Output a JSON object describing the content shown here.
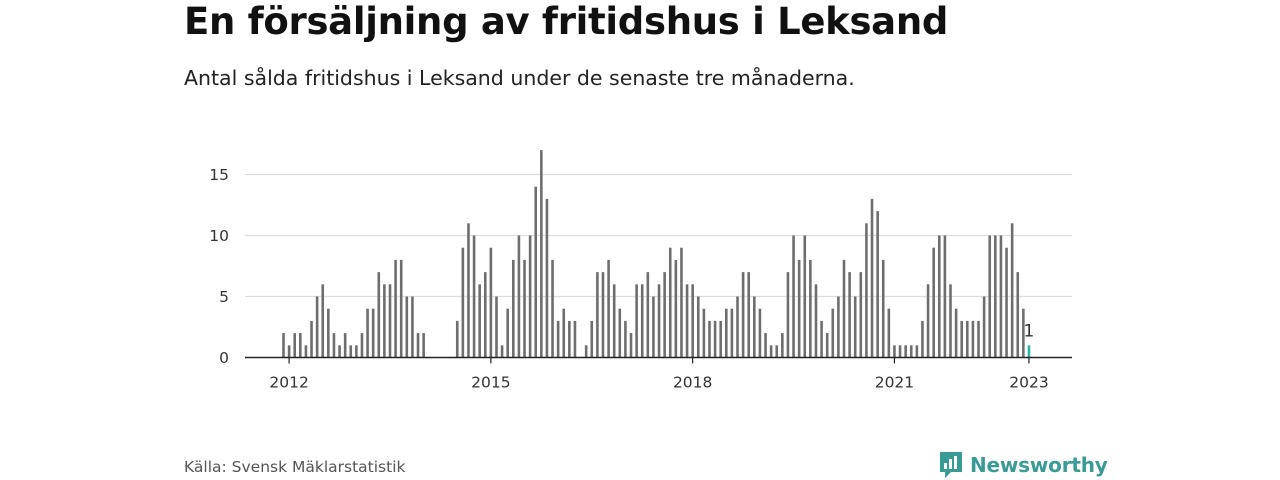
{
  "title": "En försäljning av fritidshus i Leksand",
  "subtitle": "Antal sålda fritidshus i Leksand under de senaste tre månaderna.",
  "source": "Källa: Svensk Mäklarstatistik",
  "brand": "Newsworthy",
  "colors": {
    "bar": "#6e6e6e",
    "highlight": "#2bb3b0",
    "grid": "#dddddd",
    "axis": "#222222",
    "brand": "#3a9a96"
  },
  "chart_data": {
    "type": "bar",
    "start_month": "2011-12",
    "title": "En försäljning av fritidshus i Leksand",
    "xlabel": "",
    "ylabel": "",
    "ylim": [
      0,
      17
    ],
    "yticks": [
      0,
      5,
      10,
      15
    ],
    "xticks": [
      "2012",
      "2015",
      "2018",
      "2021",
      "2023"
    ],
    "grid": true,
    "values": [
      2,
      1,
      2,
      2,
      1,
      3,
      5,
      6,
      4,
      2,
      1,
      2,
      1,
      1,
      2,
      4,
      4,
      7,
      6,
      6,
      8,
      8,
      5,
      5,
      2,
      2,
      0,
      0,
      0,
      0,
      0,
      3,
      9,
      11,
      10,
      6,
      7,
      9,
      5,
      1,
      4,
      8,
      10,
      8,
      10,
      14,
      17,
      13,
      8,
      3,
      4,
      3,
      3,
      0,
      1,
      3,
      7,
      7,
      8,
      6,
      4,
      3,
      2,
      6,
      6,
      7,
      5,
      6,
      7,
      9,
      8,
      9,
      6,
      6,
      5,
      4,
      3,
      3,
      3,
      4,
      4,
      5,
      7,
      7,
      5,
      4,
      2,
      1,
      1,
      2,
      7,
      10,
      8,
      10,
      8,
      6,
      3,
      2,
      4,
      5,
      8,
      7,
      5,
      7,
      11,
      13,
      12,
      8,
      4,
      1,
      1,
      1,
      1,
      1,
      3,
      6,
      9,
      10,
      10,
      6,
      4,
      3,
      3,
      3,
      3,
      5,
      10,
      10,
      10,
      9,
      11,
      7,
      4,
      1
    ],
    "highlight_last": true,
    "annotation": {
      "label": "1",
      "value": 1
    }
  }
}
